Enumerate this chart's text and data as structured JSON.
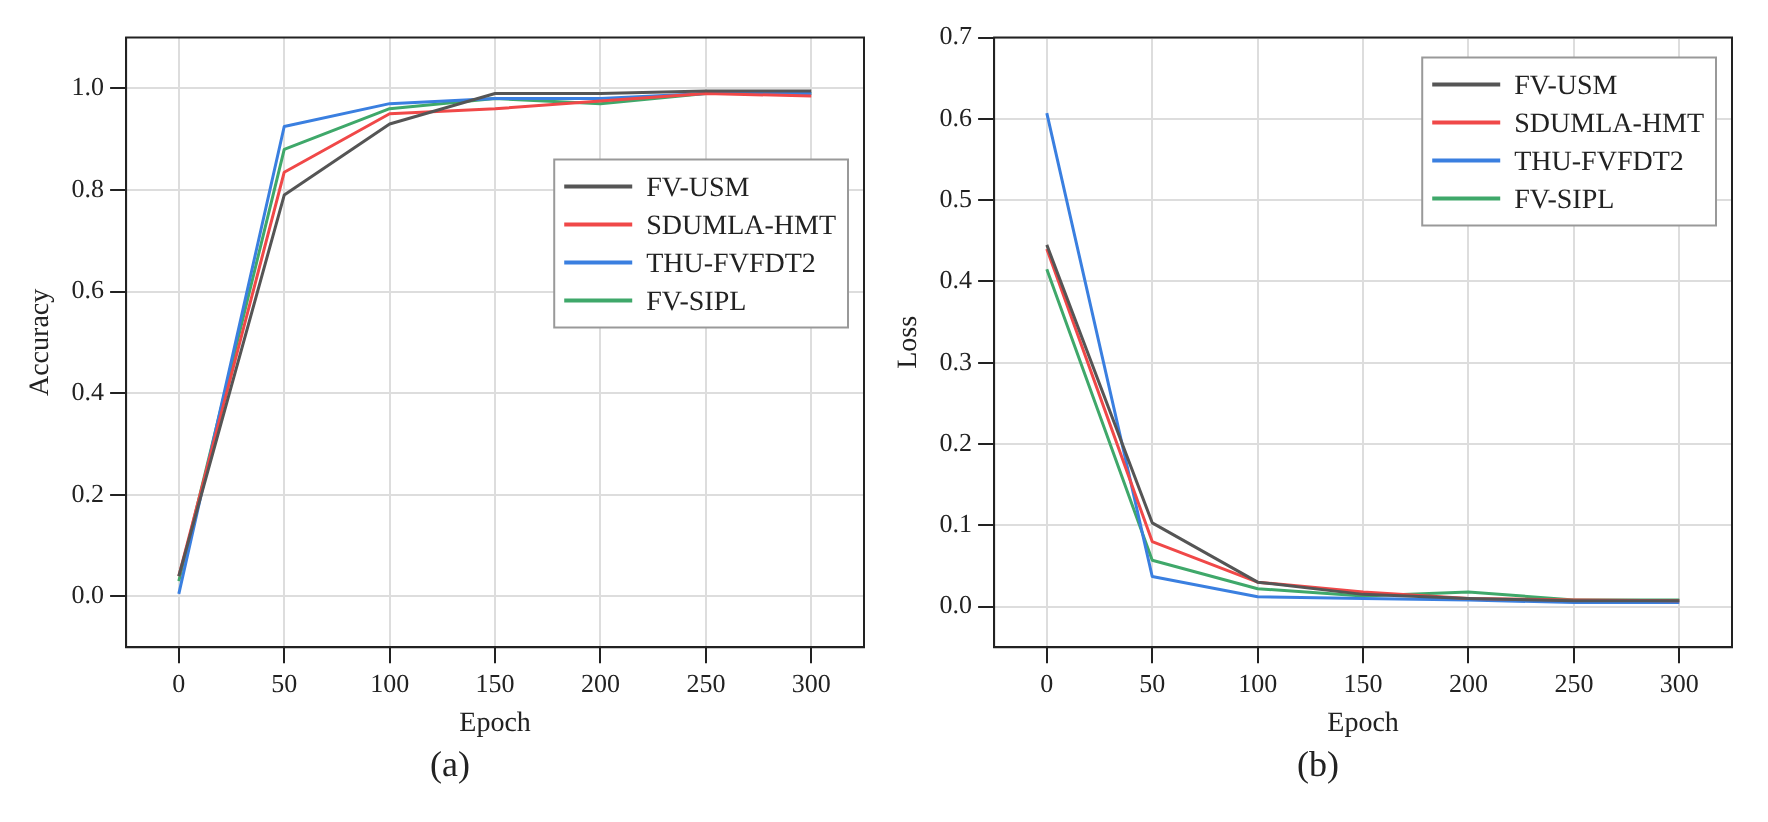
{
  "chart_data": [
    {
      "type": "line",
      "xlabel": "Epoch",
      "ylabel": "Accuracy",
      "annotations": [
        "(a)"
      ],
      "x": [
        0,
        50,
        100,
        150,
        200,
        250,
        300
      ],
      "xlim": [
        -25,
        325
      ],
      "xticks": [
        0,
        50,
        100,
        150,
        200,
        250,
        300
      ],
      "ylim": [
        -0.1,
        1.1
      ],
      "yticks": [
        {
          "value": 0,
          "label": "0.0"
        },
        {
          "value": 0.2,
          "label": "0.2"
        },
        {
          "value": 0.4,
          "label": "0.4"
        },
        {
          "value": 0.6,
          "label": "0.6"
        },
        {
          "value": 0.8,
          "label": "0.8"
        },
        {
          "value": 1,
          "label": "1.0"
        }
      ],
      "grid": true,
      "legend": "right",
      "marker": "none",
      "line_style": "solid",
      "series": [
        {
          "name": "FV-USM",
          "color": "#555555",
          "values": [
            0.04,
            0.79,
            0.93,
            0.99,
            0.99,
            0.995,
            0.995
          ]
        },
        {
          "name": "SDUMLA-HMT",
          "color": "#f04848",
          "values": [
            0.04,
            0.835,
            0.95,
            0.96,
            0.975,
            0.99,
            0.985
          ]
        },
        {
          "name": "THU-FVFDT2",
          "color": "#3a7fe0",
          "values": [
            0.005,
            0.925,
            0.97,
            0.98,
            0.98,
            0.99,
            0.99
          ]
        },
        {
          "name": "FV-SIPL",
          "color": "#3fa86a",
          "values": [
            0.03,
            0.88,
            0.96,
            0.98,
            0.97,
            0.99,
            0.99
          ]
        }
      ]
    },
    {
      "type": "line",
      "xlabel": "Epoch",
      "ylabel": "Loss",
      "annotations": [
        "(b)"
      ],
      "x": [
        0,
        50,
        100,
        150,
        200,
        250,
        300
      ],
      "xlim": [
        -25,
        325
      ],
      "xticks": [
        0,
        50,
        100,
        150,
        200,
        250,
        300
      ],
      "ylim": [
        -0.05,
        0.7
      ],
      "yticks": [
        {
          "value": 0,
          "label": "0.0"
        },
        {
          "value": 0.1,
          "label": "0.1"
        },
        {
          "value": 0.2,
          "label": "0.2"
        },
        {
          "value": 0.3,
          "label": "0.3"
        },
        {
          "value": 0.4,
          "label": "0.4"
        },
        {
          "value": 0.5,
          "label": "0.5"
        },
        {
          "value": 0.6,
          "label": "0.6"
        },
        {
          "value": 0.7,
          "label": "0.7"
        }
      ],
      "grid": true,
      "legend": "top right",
      "marker": "none",
      "line_style": "solid",
      "series": [
        {
          "name": "FV-USM",
          "color": "#555555",
          "values": [
            0.445,
            0.103,
            0.03,
            0.015,
            0.01,
            0.007,
            0.007
          ]
        },
        {
          "name": "SDUMLA-HMT",
          "color": "#f04848",
          "values": [
            0.44,
            0.08,
            0.03,
            0.018,
            0.01,
            0.008,
            0.007
          ]
        },
        {
          "name": "THU-FVFDT2",
          "color": "#3a7fe0",
          "values": [
            0.607,
            0.037,
            0.012,
            0.01,
            0.008,
            0.005,
            0.005
          ]
        },
        {
          "name": "FV-SIPL",
          "color": "#3fa86a",
          "values": [
            0.415,
            0.057,
            0.022,
            0.013,
            0.018,
            0.008,
            0.008
          ]
        }
      ]
    }
  ]
}
